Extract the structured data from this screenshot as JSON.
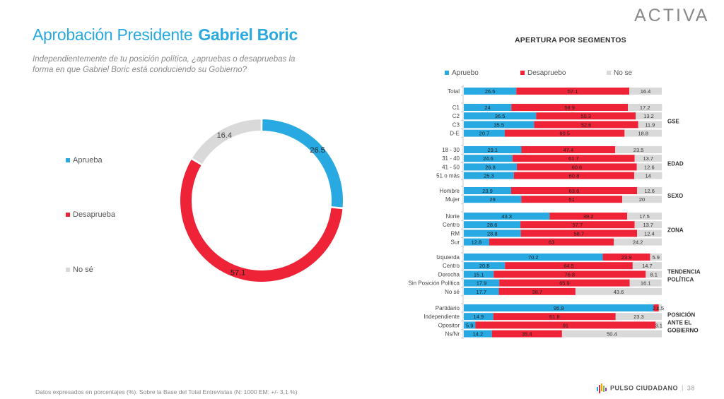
{
  "header": {
    "title_main": "Aprobación Presidente",
    "title_name": "Gabriel Boric",
    "question": "Independientemente de tu posición política, ¿apruebas o desapruebas la forma en que Gabriel Boric está conduciendo su Gobierno?",
    "brand": "ACTIVA"
  },
  "footer": {
    "note": "Datos expresados en porcentajes (%). Sobre la Base del Total Entrevistas (N: 1000  EM: +/- 3,1 %)",
    "brand": "PULSO CIUDADANO",
    "page": "38"
  },
  "colors": {
    "aprueba": "#29a9e1",
    "desaprueba": "#ee2337",
    "nose": "#d9d9d9"
  },
  "chart_data": [
    {
      "type": "pie",
      "variant": "donut",
      "legend": [
        "Aprueba",
        "Desaprueba",
        "No sé"
      ],
      "slices": [
        {
          "label": "Aprueba",
          "value": 26.5
        },
        {
          "label": "Desaprueba",
          "value": 57.1
        },
        {
          "label": "No sé",
          "value": 16.4
        }
      ]
    },
    {
      "type": "bar",
      "orientation": "horizontal",
      "stacked": true,
      "title": "APERTURA POR SEGMENTOS",
      "legend": [
        "Apruebo",
        "Desapruebo",
        "No se"
      ],
      "groups": [
        {
          "label": "",
          "rows": [
            {
              "label": "Total",
              "values": [
                26.5,
                57.1,
                16.4
              ]
            }
          ]
        },
        {
          "label": "GSE",
          "rows": [
            {
              "label": "C1",
              "values": [
                24,
                58.9,
                17.2
              ]
            },
            {
              "label": "C2",
              "values": [
                36.5,
                50.3,
                13.2
              ]
            },
            {
              "label": "C3",
              "values": [
                35.5,
                52.6,
                11.9
              ]
            },
            {
              "label": "D-E",
              "values": [
                20.7,
                60.5,
                18.8
              ]
            }
          ]
        },
        {
          "label": "EDAD",
          "rows": [
            {
              "label": "18 - 30",
              "values": [
                29.1,
                47.4,
                23.5
              ]
            },
            {
              "label": "31 - 40",
              "values": [
                24.6,
                61.7,
                13.7
              ]
            },
            {
              "label": "41 - 50",
              "values": [
                26.8,
                60.6,
                12.6
              ]
            },
            {
              "label": "51 o más",
              "values": [
                25.3,
                60.8,
                14
              ]
            }
          ]
        },
        {
          "label": "SEXO",
          "rows": [
            {
              "label": "Hombre",
              "values": [
                23.9,
                63.6,
                12.6
              ]
            },
            {
              "label": "Mujer",
              "values": [
                29,
                51,
                20
              ]
            }
          ]
        },
        {
          "label": "ZONA",
          "rows": [
            {
              "label": "Norte",
              "values": [
                43.3,
                39.2,
                17.5
              ]
            },
            {
              "label": "Centro",
              "values": [
                28.6,
                57.7,
                13.7
              ]
            },
            {
              "label": "RM",
              "values": [
                28.8,
                58.7,
                12.4
              ]
            },
            {
              "label": "Sur",
              "values": [
                12.8,
                63,
                24.2
              ]
            }
          ]
        },
        {
          "label": "TENDENCIA POLÍTICA",
          "rows": [
            {
              "label": "Izquierda",
              "values": [
                70.2,
                23.9,
                5.9
              ]
            },
            {
              "label": "Centro",
              "values": [
                20.8,
                64.5,
                14.7
              ]
            },
            {
              "label": "Derecha",
              "values": [
                15.1,
                76.8,
                8.1
              ]
            },
            {
              "label": "Sin Posición Política",
              "values": [
                17.9,
                65.9,
                16.1
              ]
            },
            {
              "label": "No sé",
              "values": [
                17.7,
                38.7,
                43.6
              ]
            }
          ]
        },
        {
          "label": "POSICIÓN ANTE EL GOBIERNO",
          "rows": [
            {
              "label": "Partidario",
              "values": [
                95.9,
                2.6,
                1.5
              ]
            },
            {
              "label": "Independiente",
              "values": [
                14.9,
                61.8,
                23.3
              ]
            },
            {
              "label": "Opositor",
              "values": [
                5.9,
                91,
                3.1
              ]
            },
            {
              "label": "Ns/Nr",
              "values": [
                14.2,
                35.4,
                50.4
              ]
            }
          ]
        }
      ]
    }
  ]
}
